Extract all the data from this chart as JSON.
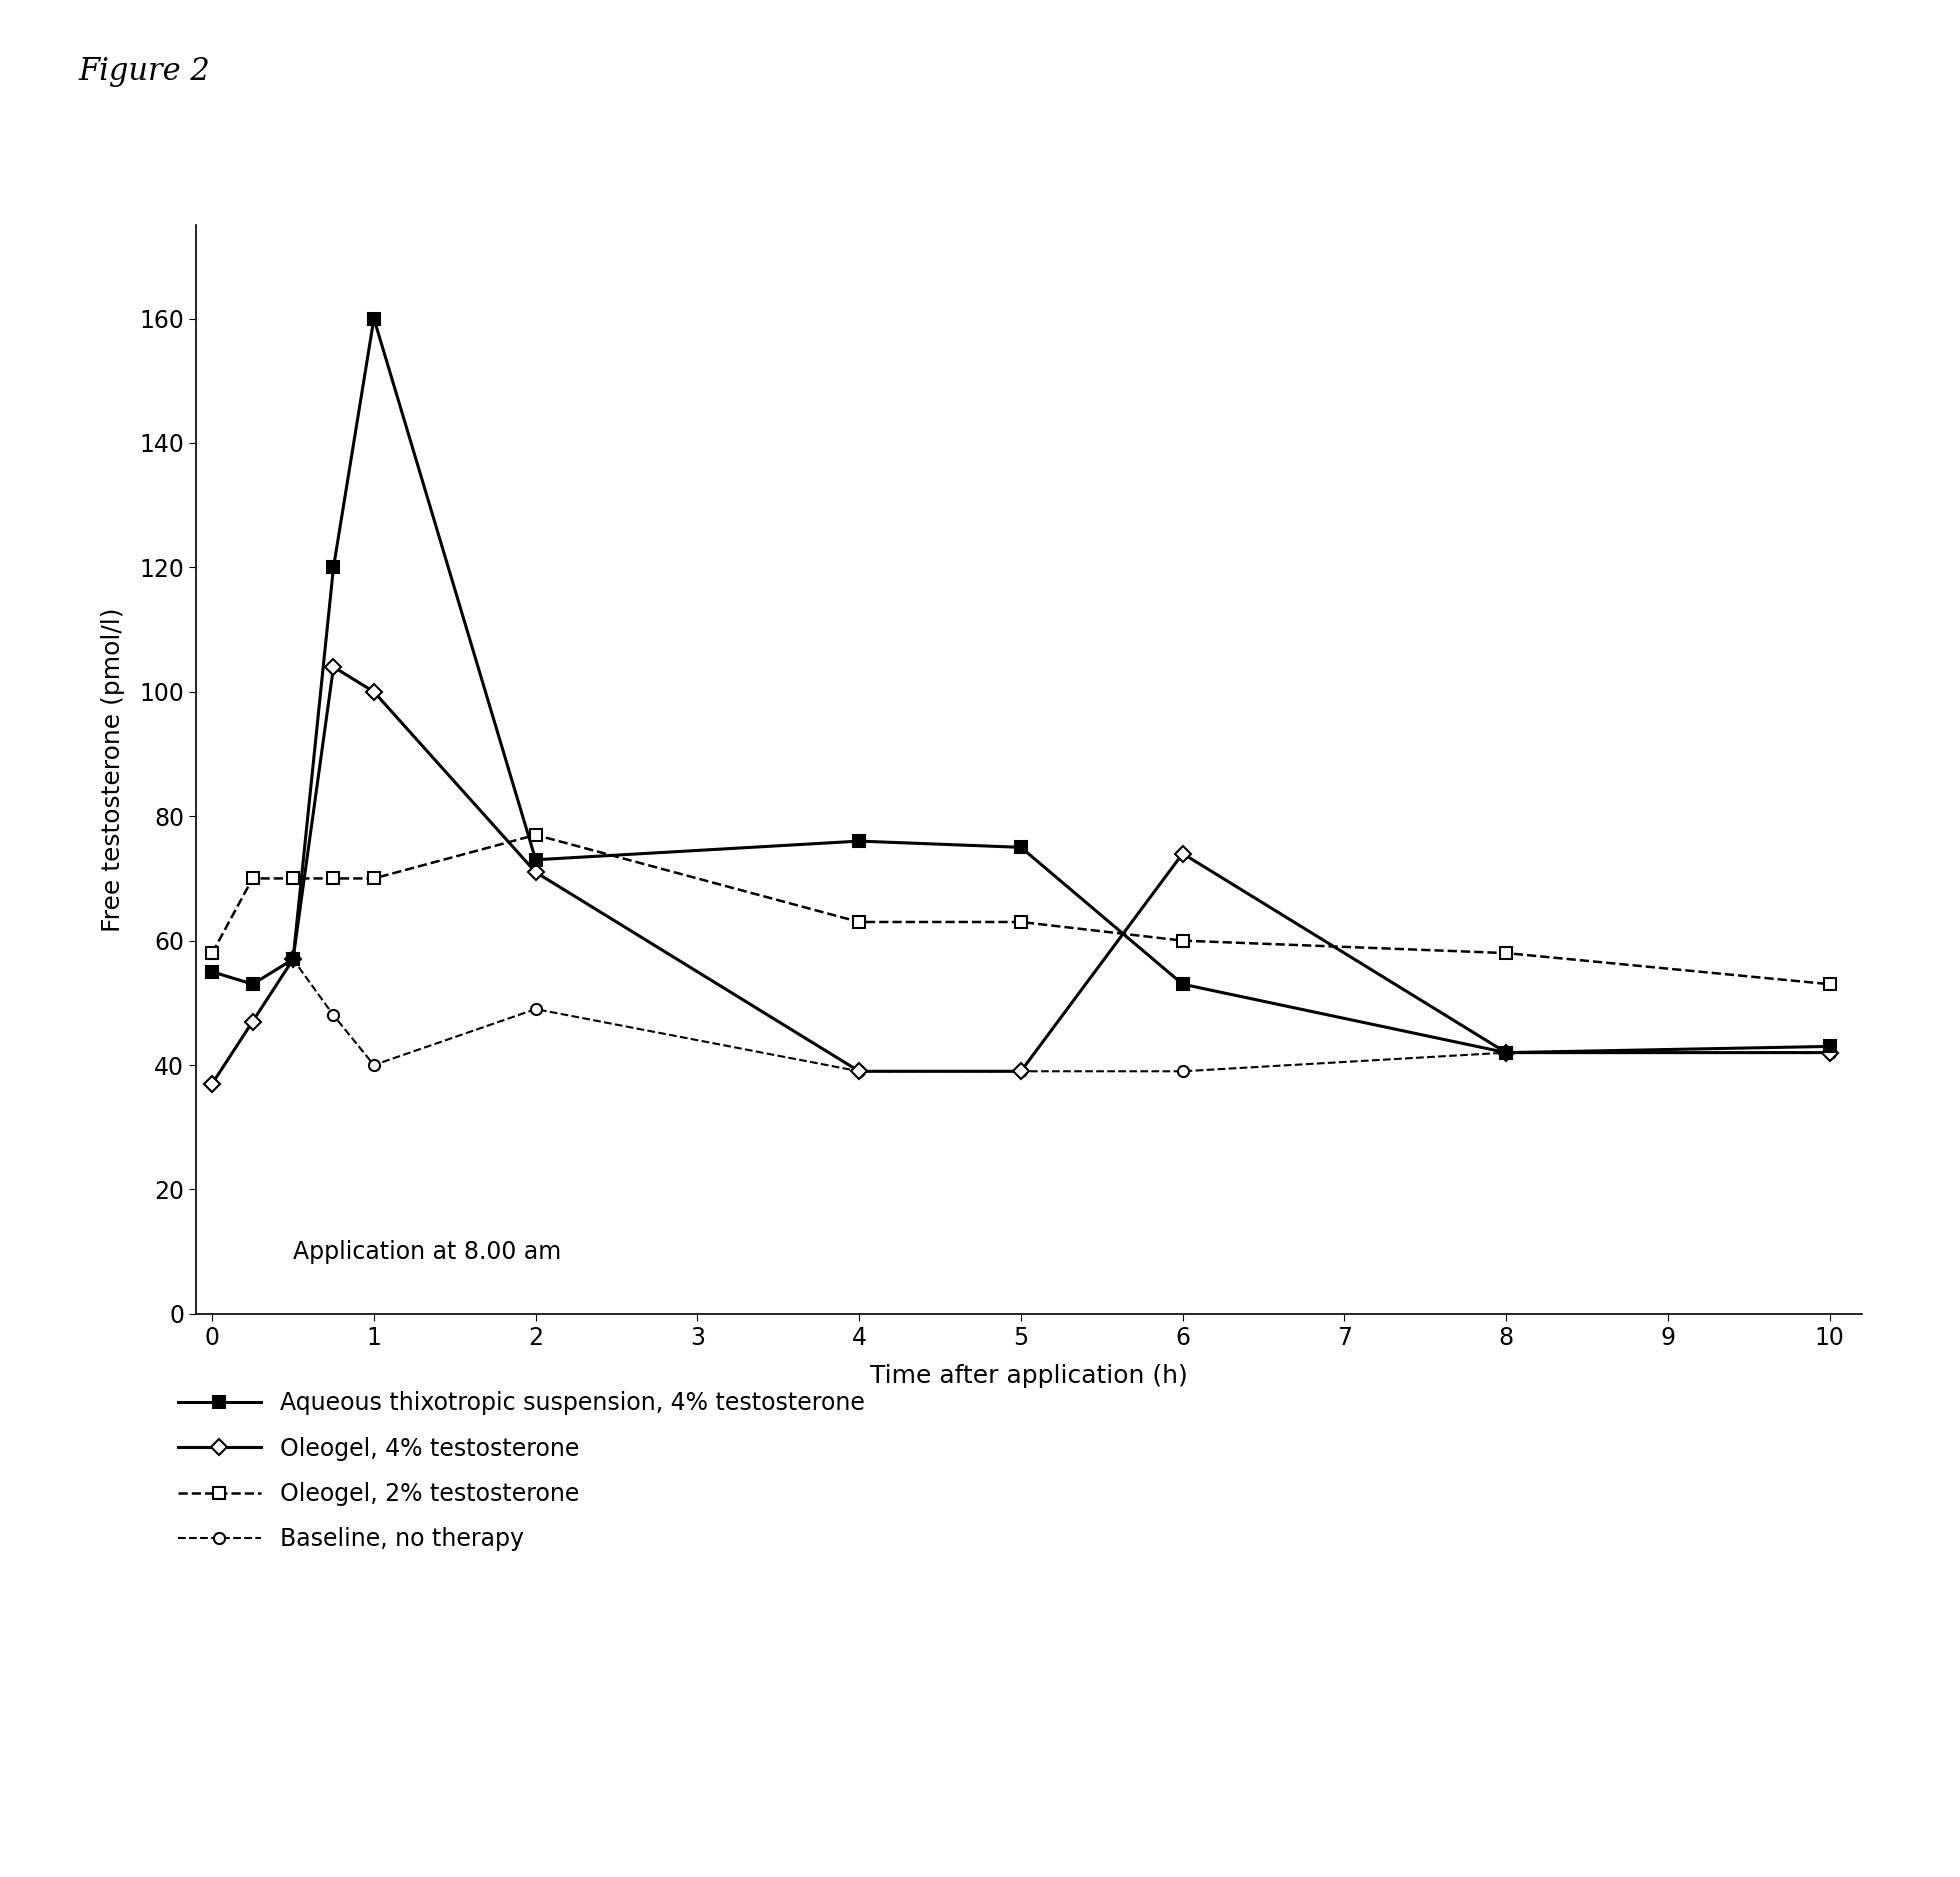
{
  "title": "Figure 2",
  "xlabel": "Time after application (h)",
  "ylabel": "Free testosterone (pmol/l)",
  "annotation": "Application at 8.00 am",
  "xlim": [
    -0.1,
    10.2
  ],
  "ylim": [
    0,
    175
  ],
  "yticks": [
    0,
    20,
    40,
    60,
    80,
    100,
    120,
    140,
    160
  ],
  "xticks": [
    0,
    1,
    2,
    3,
    4,
    5,
    6,
    7,
    8,
    9,
    10
  ],
  "series": [
    {
      "label": "Aqueous thixotropic suspension, 4% testosterone",
      "x": [
        0,
        0.25,
        0.5,
        0.75,
        1.0,
        2.0,
        4.0,
        5.0,
        6.0,
        8.0,
        10.0
      ],
      "y": [
        55,
        53,
        57,
        120,
        160,
        73,
        76,
        75,
        53,
        42,
        43
      ],
      "color": "#000000",
      "linestyle": "-",
      "linewidth": 2.2,
      "marker": "s",
      "markersize": 8,
      "markerfacecolor": "#000000",
      "zorder": 4
    },
    {
      "label": "Oleogel, 4% testosterone",
      "x": [
        0,
        0.25,
        0.5,
        0.75,
        1.0,
        2.0,
        4.0,
        5.0,
        6.0,
        8.0,
        10.0
      ],
      "y": [
        37,
        47,
        57,
        104,
        100,
        71,
        39,
        39,
        74,
        42,
        42
      ],
      "color": "#000000",
      "linestyle": "-",
      "linewidth": 2.2,
      "marker": "D",
      "markersize": 8,
      "markerfacecolor": "#ffffff",
      "zorder": 3
    },
    {
      "label": "Oleogel, 2% testosterone",
      "x": [
        0,
        0.25,
        0.5,
        0.75,
        1.0,
        2.0,
        4.0,
        5.0,
        6.0,
        8.0,
        10.0
      ],
      "y": [
        58,
        70,
        70,
        70,
        70,
        77,
        63,
        63,
        60,
        58,
        53
      ],
      "color": "#000000",
      "linestyle": "--",
      "linewidth": 1.8,
      "marker": "s",
      "markersize": 8,
      "markerfacecolor": "#ffffff",
      "zorder": 2
    },
    {
      "label": "Baseline, no therapy",
      "x": [
        0,
        0.25,
        0.5,
        0.75,
        1.0,
        2.0,
        4.0,
        5.0,
        6.0,
        8.0,
        10.0
      ],
      "y": [
        55,
        53,
        57,
        48,
        40,
        49,
        39,
        39,
        39,
        42,
        42
      ],
      "color": "#000000",
      "linestyle": "--",
      "linewidth": 1.5,
      "marker": "o",
      "markersize": 8,
      "markerfacecolor": "#ffffff",
      "zorder": 1
    }
  ],
  "background_color": "#ffffff",
  "figure_title_fontsize": 22,
  "axis_label_fontsize": 18,
  "tick_fontsize": 17,
  "legend_fontsize": 17,
  "annotation_fontsize": 17
}
